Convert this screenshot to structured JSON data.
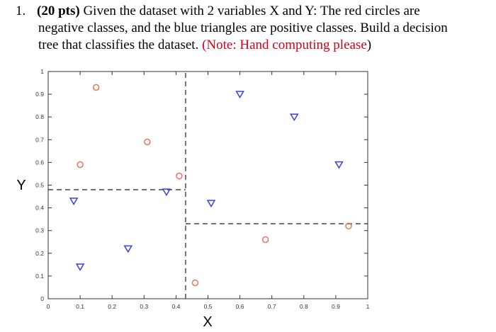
{
  "question": {
    "number": "1.",
    "points": "(20 pts)",
    "line1_text": " Given the dataset with 2 variables X and Y: The red circles are",
    "line2_text": "negative classes, and the blue triangles are positive classes. Build a decision",
    "line3_text": "tree that classifies the dataset. ",
    "note": "(Note: Hand computing please",
    "note_close": ")"
  },
  "chart_data": {
    "type": "scatter",
    "xlabel": "X",
    "ylabel": "Y",
    "xlim": [
      0,
      1
    ],
    "ylim": [
      0,
      1
    ],
    "xticks": [
      "0",
      "0.1",
      "0.2",
      "0.3",
      "0.4",
      "0.5",
      "0.6",
      "0.7",
      "0.8",
      "0.9",
      "1"
    ],
    "yticks": [
      "0",
      "0.1",
      "0.2",
      "0.3",
      "0.4",
      "0.5",
      "0.6",
      "0.7",
      "0.8",
      "0.9",
      "1"
    ],
    "grid": false,
    "series": [
      {
        "marker": "circle",
        "color": "#e8735f",
        "points": [
          [
            0.15,
            0.93
          ],
          [
            0.31,
            0.69
          ],
          [
            0.1,
            0.59
          ],
          [
            0.41,
            0.54
          ],
          [
            0.46,
            0.07
          ],
          [
            0.68,
            0.26
          ],
          [
            0.94,
            0.32
          ]
        ]
      },
      {
        "marker": "triangle-down",
        "color": "#3b3fd9",
        "points": [
          [
            0.6,
            0.9
          ],
          [
            0.77,
            0.8
          ],
          [
            0.91,
            0.59
          ],
          [
            0.37,
            0.47
          ],
          [
            0.08,
            0.43
          ],
          [
            0.51,
            0.42
          ],
          [
            0.25,
            0.22
          ],
          [
            0.1,
            0.14
          ]
        ]
      }
    ],
    "decision_boundaries": [
      {
        "orientation": "vertical",
        "x": 0.43,
        "y_range": [
          0,
          1
        ]
      },
      {
        "orientation": "horizontal",
        "y": 0.48,
        "x_range": [
          0,
          0.43
        ]
      },
      {
        "orientation": "horizontal",
        "y": 0.33,
        "x_range": [
          0.43,
          1
        ]
      }
    ]
  }
}
